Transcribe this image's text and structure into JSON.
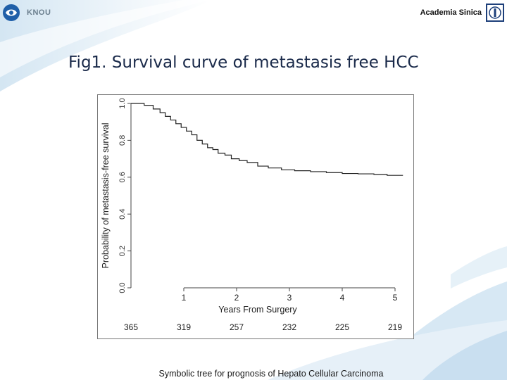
{
  "header": {
    "left_brand": "KNOU",
    "right_institution": "Academia Sinica"
  },
  "slide_title": "Fig1. Survival curve of metastasis free HCC",
  "caption": "Symbolic tree for prognosis of Hepato Cellular Carcinoma",
  "chart_data": {
    "type": "line",
    "subtype": "kaplan-meier-step",
    "xlabel": "Years From Surgery",
    "ylabel": "Probability of metastasis-free survival",
    "xlim": [
      0,
      5.2
    ],
    "ylim": [
      0,
      1.0
    ],
    "xticks": [
      1,
      2,
      3,
      4,
      5
    ],
    "yticks": [
      "0.0",
      "0.2",
      "0.4",
      "0.6",
      "0.8",
      "1.0"
    ],
    "grid": false,
    "series": [
      {
        "name": "Metastasis-free survival",
        "x": [
          0,
          0.25,
          0.42,
          0.55,
          0.65,
          0.75,
          0.85,
          0.95,
          1.05,
          1.15,
          1.25,
          1.35,
          1.45,
          1.55,
          1.65,
          1.78,
          1.9,
          2.05,
          2.2,
          2.4,
          2.6,
          2.85,
          3.1,
          3.4,
          3.7,
          4.0,
          4.3,
          4.6,
          4.85,
          5.15
        ],
        "y": [
          1.0,
          0.99,
          0.97,
          0.95,
          0.93,
          0.91,
          0.89,
          0.87,
          0.85,
          0.83,
          0.8,
          0.78,
          0.76,
          0.75,
          0.73,
          0.72,
          0.7,
          0.69,
          0.68,
          0.66,
          0.65,
          0.64,
          0.635,
          0.63,
          0.625,
          0.62,
          0.618,
          0.615,
          0.61,
          0.61
        ]
      }
    ],
    "at_risk": {
      "x": [
        0,
        1,
        2,
        3,
        4,
        5
      ],
      "values": [
        "365",
        "319",
        "257",
        "232",
        "225",
        "219"
      ]
    }
  }
}
